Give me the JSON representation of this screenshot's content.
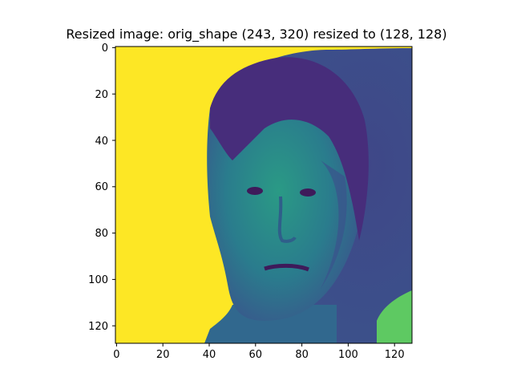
{
  "figure": {
    "title": "Resized image: orig_shape (243, 320) resized to (128, 128)"
  },
  "image": {
    "description_colors": {
      "background": "#fde725",
      "dark": "#440154",
      "mid": "#3b528b",
      "teal": "#21918c",
      "green": "#5ec962",
      "yellow": "#fde725"
    }
  },
  "axes": {
    "x_ticks": [
      0,
      20,
      40,
      60,
      80,
      100,
      120
    ],
    "y_ticks": [
      0,
      20,
      40,
      60,
      80,
      100,
      120
    ],
    "x_range": [
      0,
      128
    ],
    "y_range": [
      0,
      128
    ]
  }
}
